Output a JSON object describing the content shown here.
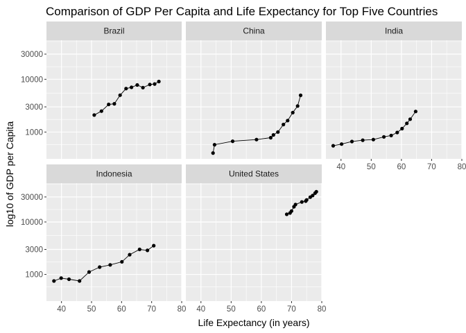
{
  "chart_data": {
    "type": "scatter",
    "connected_lines": true,
    "title": "Comparison of GDP Per Capita and Life Expectancy for Top Five Countries",
    "xlabel": "Life Expectancy (in years)",
    "ylabel": "log10 of GDP per Capita",
    "xlim": [
      35,
      80
    ],
    "ylim": [
      310,
      55000
    ],
    "y_scale": "log10",
    "x_ticks": [
      40,
      50,
      60,
      70,
      80
    ],
    "x_tick_labels": [
      "40",
      "50",
      "60",
      "70",
      "80"
    ],
    "y_ticks": [
      1000,
      3000,
      10000,
      30000
    ],
    "y_tick_labels": [
      "1000",
      "3000",
      "10000",
      "30000"
    ],
    "grid": true,
    "legend": "none",
    "panels": [
      {
        "name": "Brazil",
        "x": [
          50.9,
          53.3,
          55.7,
          57.6,
          59.5,
          61.5,
          63.3,
          65.2,
          67.1,
          69.4,
          71.0,
          72.4
        ],
        "y": [
          2100,
          2490,
          3340,
          3430,
          4990,
          6660,
          7030,
          7810,
          6960,
          7960,
          8130,
          9070
        ]
      },
      {
        "name": "China",
        "x": [
          44.0,
          44.5,
          50.5,
          58.4,
          63.1,
          64.0,
          65.5,
          67.3,
          68.7,
          70.4,
          72.0,
          73.0
        ],
        "y": [
          400,
          575,
          670,
          720,
          780,
          880,
          1000,
          1390,
          1650,
          2340,
          3120,
          4960
        ]
      },
      {
        "name": "India",
        "x": [
          37.4,
          40.2,
          43.6,
          47.2,
          50.7,
          54.2,
          56.6,
          58.6,
          60.2,
          61.8,
          62.9,
          64.7
        ],
        "y": [
          550,
          590,
          660,
          700,
          720,
          810,
          860,
          980,
          1160,
          1460,
          1750,
          2450
        ]
      },
      {
        "name": "Indonesia",
        "x": [
          37.5,
          39.9,
          42.5,
          46.0,
          49.2,
          52.7,
          56.2,
          60.1,
          62.7,
          66.0,
          68.6,
          70.7
        ],
        "y": [
          750,
          850,
          810,
          750,
          1110,
          1380,
          1520,
          1740,
          2380,
          3000,
          2870,
          3540
        ]
      },
      {
        "name": "United States",
        "x": [
          68.4,
          69.5,
          70.0,
          70.8,
          71.3,
          73.4,
          74.7,
          75.0,
          76.2,
          77.0,
          77.8,
          78.2
        ],
        "y": [
          13990,
          14850,
          16170,
          19540,
          21500,
          24070,
          25010,
          26300,
          29700,
          32000,
          35500,
          37800
        ]
      }
    ]
  }
}
